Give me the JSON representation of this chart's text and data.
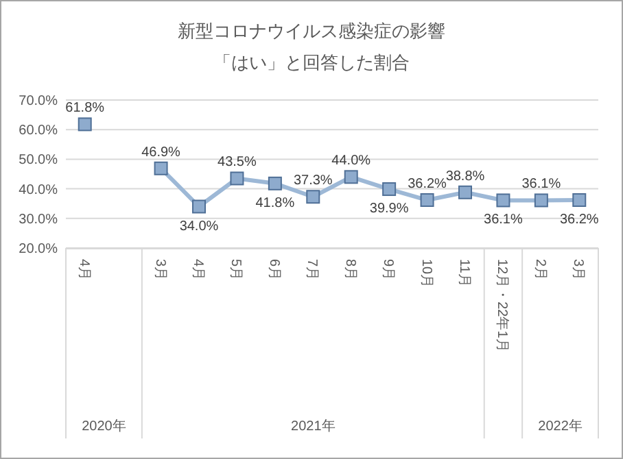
{
  "chart_data": {
    "type": "line",
    "title": "新型コロナウイルス感染症の影響",
    "subtitle": "「はい」と回答した割合",
    "categories": [
      "4月",
      null,
      "3月",
      "4月",
      "5月",
      "6月",
      "7月",
      "8月",
      "9月",
      "10月",
      "11月",
      "12月・22年1月",
      "2月",
      "3月"
    ],
    "series": [
      {
        "color": "#9db8d6",
        "values": [
          61.8,
          null,
          46.9,
          34.0,
          43.5,
          41.8,
          37.3,
          44.0,
          39.9,
          36.2,
          38.8,
          36.1,
          36.1,
          36.2
        ],
        "value_labels": [
          "61.8%",
          null,
          "46.9%",
          "34.0%",
          "43.5%",
          "41.8%",
          "37.3%",
          "44.0%",
          "39.9%",
          "36.2%",
          "38.8%",
          "36.1%",
          "36.1%",
          "36.2%"
        ]
      }
    ],
    "ylim": [
      20,
      70
    ],
    "yticks": [
      {
        "value": 20,
        "label": "20.0%"
      },
      {
        "value": 30,
        "label": "30.0%"
      },
      {
        "value": 40,
        "label": "40.0%"
      },
      {
        "value": 50,
        "label": "50.0%"
      },
      {
        "value": 60,
        "label": "60.0%"
      },
      {
        "value": 70,
        "label": "70.0%"
      }
    ],
    "grid": "y",
    "marker": "square",
    "line_style": "solid",
    "annotations": [
      "2020年",
      "2021年",
      "2022年"
    ]
  }
}
